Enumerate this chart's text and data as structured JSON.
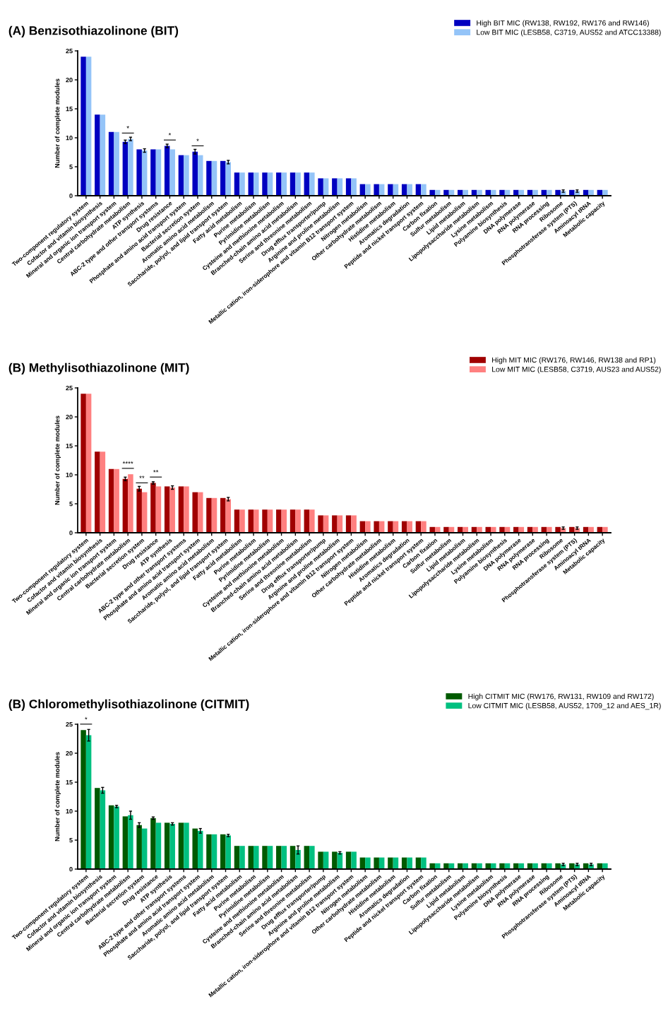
{
  "chart_data": [
    {
      "type": "bar",
      "title": "(A) Benzisothiazolinone (BIT)",
      "ylabel": "Number of complete modules",
      "ylim": [
        0,
        25
      ],
      "yticks": [
        0,
        5,
        10,
        15,
        20,
        25
      ],
      "legend": "top right",
      "categories": [
        "Two-component regulatory system",
        "Cofactor and vitamin biosynthesis",
        "Mineral and organic ion transport system",
        "Central carbohydrate metabolism",
        "ATP synthesis",
        "ABC-2 type and other transport systems",
        "Drug resistance",
        "Phosphate and amino acid transport system",
        "Bacterial secretion system",
        "Aromatic amino acid metabolism",
        "Saccharide, polyol, and lipid transport system",
        "Fatty acid metabolism",
        "Purine metabolism",
        "Pyrimidine metabolism",
        "Cysteine and methionine metabolism",
        "Branched-chain amino acid metabolism",
        "Serine and threonine metabolism",
        "Drug efflux transporter/pump",
        "Arginine and proline metabolism",
        "Metallic cation, iron-siderophore and vitamin B12 transport system",
        "Nitrogen metabolism",
        "Other carbohydrate metabolism",
        "Histidine metabolism",
        "Aromatics degradation",
        "Peptide and nickel transport system",
        "Carbon fixation",
        "Sulfur metabolism",
        "Lipid metabolism",
        "Lipopolysaccharide metabolism",
        "Lysine metabolism",
        "Polyamine biosynthesis",
        "DNA polymerase",
        "RNA polymerase",
        "RNA processing",
        "Ribosome",
        "Phosphotransferase system (PTS)",
        "Aminoacyl tRNA",
        "Metabolic capacity"
      ],
      "series": [
        {
          "name": "High BIT MIC (RW138, RW192, RW176 and RW146)",
          "color": "#0000c0",
          "values": [
            24,
            14,
            11,
            9.3,
            8,
            8,
            8.6,
            7,
            7.6,
            6,
            6,
            4,
            4,
            4,
            4,
            4,
            4,
            3,
            3,
            3,
            2,
            2,
            2,
            2,
            2,
            1,
            1,
            1,
            1,
            1,
            1,
            1,
            1,
            1,
            1,
            1,
            1,
            1
          ],
          "errors": [
            null,
            null,
            null,
            0.3,
            null,
            null,
            0.3,
            null,
            0.4,
            null,
            null,
            null,
            null,
            null,
            null,
            null,
            null,
            null,
            null,
            null,
            null,
            null,
            null,
            null,
            null,
            null,
            null,
            null,
            null,
            null,
            null,
            null,
            null,
            null,
            null,
            null,
            null,
            null
          ]
        },
        {
          "name": "Low BIT MIC (LESB58, C3719, AUS52 and ATCC13388)",
          "color": "#94c4f8",
          "values": [
            24,
            14,
            11,
            9.8,
            7.8,
            8,
            8,
            7,
            7,
            6,
            5.8,
            4,
            4,
            4,
            4,
            4,
            4,
            3,
            3,
            3,
            2,
            2,
            2,
            2,
            2,
            1,
            1,
            1,
            1,
            1,
            1,
            1,
            1,
            1,
            0.8,
            0.8,
            1,
            1
          ],
          "errors": [
            null,
            null,
            null,
            0.3,
            0.3,
            null,
            null,
            null,
            null,
            null,
            0.3,
            null,
            null,
            null,
            null,
            null,
            null,
            null,
            null,
            null,
            null,
            null,
            null,
            null,
            null,
            null,
            null,
            null,
            null,
            null,
            null,
            null,
            null,
            null,
            0.2,
            0.2,
            null,
            null
          ]
        }
      ],
      "annotations": [
        {
          "text": "*",
          "x": "Central carbohydrate metabolism",
          "y": 9.8
        },
        {
          "text": "*",
          "x": "Drug resistance",
          "y": 8.6
        },
        {
          "text": "*",
          "x": "Bacterial secretion system",
          "y": 7.6
        }
      ]
    },
    {
      "type": "bar",
      "title": "(B) Methylisothiazolinone (MIT)",
      "ylabel": "Number of complete modules",
      "ylim": [
        0,
        25
      ],
      "yticks": [
        0,
        5,
        10,
        15,
        20,
        25
      ],
      "legend": "top right",
      "categories": [
        "Two-component regulatory system",
        "Cofactor and vitamin biosynthesis",
        "Mineral and organic ion transport system",
        "Central carbohydrate metabolism",
        "Bacterial secretion system",
        "Drug resistance",
        "ATP synthesis",
        "ABC-2 type and other transport systems",
        "Phosphate and amino acid transport system",
        "Aromatic amino acid metabolism",
        "Saccharide, polyol, and lipid transport system",
        "Fatty acid metabolism",
        "Purine metabolism",
        "Pyrimidine metabolism",
        "Cysteine and methionine metabolism",
        "Branched-chain amino acid metabolism",
        "Serine and threonine metabolism",
        "Drug efflux transporter/pump",
        "Arginine and proline metabolism",
        "Metallic cation, iron-siderophore and vitamin B12 transport system",
        "Nitrogen metabolism",
        "Other carbohydrate metabolism",
        "Histidine metabolism",
        "Aromatics degradation",
        "Peptide and nickel transport system",
        "Carbon fixation",
        "Sulfur metabolism",
        "Lipid metabolism",
        "Lipopolysaccharide metabolism",
        "Lysine metabolism",
        "Polyamine biosynthesis",
        "DNA polymerase",
        "RNA polymerase",
        "RNA processing",
        "Ribosome",
        "Phosphotransferase system (PTS)",
        "Aminoacyl tRNA",
        "Metabolic capacity"
      ],
      "series": [
        {
          "name": "High MIT MIC (RW176, RW146, RW138 and RP1)",
          "color": "#a00000",
          "values": [
            24,
            14,
            11,
            9.3,
            7.6,
            8.6,
            8,
            8,
            7,
            6,
            6,
            4,
            4,
            4,
            4,
            4,
            4,
            3,
            3,
            3,
            2,
            2,
            2,
            2,
            2,
            1,
            1,
            1,
            1,
            1,
            1,
            1,
            1,
            1,
            1,
            1,
            1,
            1
          ],
          "errors": [
            null,
            null,
            null,
            0.3,
            0.4,
            0.2,
            null,
            null,
            null,
            null,
            null,
            null,
            null,
            null,
            null,
            null,
            null,
            null,
            null,
            null,
            null,
            null,
            null,
            null,
            null,
            null,
            null,
            null,
            null,
            null,
            null,
            null,
            null,
            null,
            null,
            null,
            null,
            null
          ]
        },
        {
          "name": "Low MIT MIC (LESB58, C3719, AUS23 and AUS52)",
          "color": "#ff8080",
          "values": [
            24,
            14,
            11,
            10.1,
            7,
            8,
            7.8,
            8,
            7,
            6,
            5.8,
            4,
            4,
            4,
            4,
            4,
            4,
            3,
            3,
            3,
            2,
            2,
            2,
            2,
            2,
            1,
            1,
            1,
            1,
            1,
            1,
            1,
            1,
            1,
            0.8,
            0.8,
            1,
            1
          ],
          "errors": [
            null,
            null,
            null,
            null,
            null,
            null,
            0.3,
            null,
            null,
            null,
            0.3,
            null,
            null,
            null,
            null,
            null,
            null,
            null,
            null,
            null,
            null,
            null,
            null,
            null,
            null,
            null,
            null,
            null,
            null,
            null,
            null,
            null,
            null,
            null,
            0.2,
            0.2,
            null,
            null
          ]
        }
      ],
      "annotations": [
        {
          "text": "****",
          "x": "Central carbohydrate metabolism",
          "y": 10.1
        },
        {
          "text": "**",
          "x": "Bacterial secretion system",
          "y": 7.6
        },
        {
          "text": "**",
          "x": "Drug resistance",
          "y": 8.6
        }
      ]
    },
    {
      "type": "bar",
      "title": "(B) Chloromethylisothiazolinone (CITMIT)",
      "ylabel": "Number of complete modules",
      "ylim": [
        0,
        25
      ],
      "yticks": [
        0,
        5,
        10,
        15,
        20,
        25
      ],
      "legend": "top right",
      "categories": [
        "Two-component regulatory system",
        "Cofactor and vitamin biosynthesis",
        "Mineral and organic ion transport system",
        "Central carbohydrate metabolism",
        "Bacterial secretion system",
        "Drug resistance",
        "ATP synthesis",
        "ABC-2 type and other transport systems",
        "Phosphate and amino acid transport system",
        "Aromatic amino acid metabolism",
        "Saccharide, polyol, and lipid transport system",
        "Fatty acid metabolism",
        "Purine metabolism",
        "Pyrimidine metabolism",
        "Cysteine and methionine metabolism",
        "Branched-chain amino acid metabolism",
        "Serine and threonine metabolism",
        "Drug efflux transporter/pump",
        "Arginine and proline metabolism",
        "Metallic cation, iron-siderophore and vitamin B12 transport system",
        "Nitrogen metabolism",
        "Other carbohydrate metabolism",
        "Histidine metabolism",
        "Aromatics degradation",
        "Peptide and nickel transport system",
        "Carbon fixation",
        "Sulfur metabolism",
        "Lipid metabolism",
        "Lipopolysaccharide metabolism",
        "Lysine metabolism",
        "Polyamine biosynthesis",
        "DNA polymerase",
        "RNA polymerase",
        "RNA processing",
        "Ribosome",
        "Phosphotransferase system (PTS)",
        "Aminoacyl tRNA",
        "Metabolic capacity"
      ],
      "series": [
        {
          "name": "High CITMIT MIC (RW176, RW131, RW109 and RW172)",
          "color": "#005a00",
          "values": [
            24,
            14,
            11,
            9.1,
            7.6,
            8.8,
            8,
            8,
            7,
            6,
            6,
            4,
            4,
            4,
            4,
            4,
            4,
            3,
            3,
            3,
            2,
            2,
            2,
            2,
            2,
            1,
            1,
            1,
            1,
            1,
            1,
            1,
            1,
            1,
            1,
            1,
            1,
            1
          ],
          "errors": [
            null,
            null,
            null,
            null,
            0.4,
            0.2,
            null,
            null,
            null,
            null,
            null,
            null,
            null,
            null,
            null,
            null,
            null,
            null,
            null,
            null,
            null,
            null,
            null,
            null,
            null,
            null,
            null,
            null,
            null,
            null,
            null,
            null,
            null,
            null,
            null,
            null,
            null,
            null
          ]
        },
        {
          "name": "Low CITMIT MIC (LESB58, AUS52, 1709_12 and AES_1R)",
          "color": "#00c080",
          "values": [
            23.1,
            13.6,
            10.8,
            9.3,
            7,
            8,
            7.8,
            8,
            6.6,
            6,
            5.8,
            4,
            4,
            4,
            4,
            3.3,
            4,
            3,
            2.8,
            3,
            2,
            2,
            2,
            2,
            2,
            1,
            1,
            1,
            1,
            1,
            1,
            1,
            1,
            1,
            0.8,
            0.8,
            0.8,
            1
          ],
          "errors": [
            1,
            0.5,
            0.2,
            0.7,
            null,
            null,
            0.2,
            null,
            0.4,
            null,
            0.2,
            null,
            null,
            null,
            null,
            0.7,
            null,
            null,
            0.2,
            null,
            null,
            null,
            null,
            null,
            null,
            null,
            null,
            null,
            null,
            null,
            null,
            null,
            null,
            null,
            0.2,
            0.2,
            0.2,
            null
          ]
        }
      ],
      "annotations": [
        {
          "text": "*",
          "x": "Two-component regulatory system",
          "y": 24
        }
      ]
    }
  ]
}
